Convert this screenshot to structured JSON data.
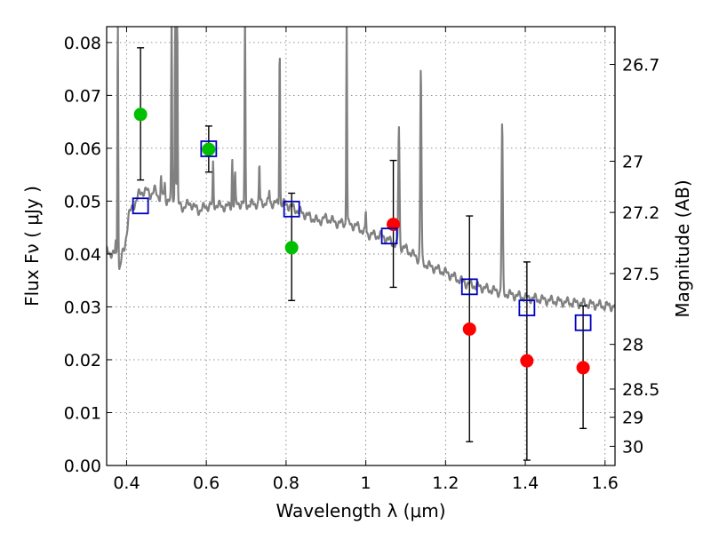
{
  "chart_data": {
    "type": "scatter",
    "title": "",
    "xlabel": "Wavelength  λ (μm)",
    "ylabel": "Flux  Fν  ( μJy )",
    "y2label": "Magnitude (AB)",
    "xlim": [
      0.35,
      1.625
    ],
    "ylim": [
      0.0,
      0.083
    ],
    "grid": true,
    "x_ticks": [
      0.4,
      0.6,
      0.8,
      1.0,
      1.2,
      1.4,
      1.6
    ],
    "x_tick_labels": [
      "0.4",
      "0.6",
      "0.8",
      "1",
      "1.2",
      "1.4",
      "1.6"
    ],
    "y_ticks": [
      0.0,
      0.01,
      0.02,
      0.03,
      0.04,
      0.05,
      0.06,
      0.07,
      0.08
    ],
    "y_tick_labels": [
      "0.00",
      "0.01",
      "0.02",
      "0.03",
      "0.04",
      "0.05",
      "0.06",
      "0.07",
      "0.08"
    ],
    "mag_ticks": [
      {
        "value": 26.7,
        "label": "26.7"
      },
      {
        "value": 27.0,
        "label": "27"
      },
      {
        "value": 27.2,
        "label": "27.2"
      },
      {
        "value": 27.5,
        "label": "27.5"
      },
      {
        "value": 28.0,
        "label": "28"
      },
      {
        "value": 28.5,
        "label": "28.5"
      },
      {
        "value": 29.0,
        "label": "29"
      },
      {
        "value": 30.0,
        "label": "30"
      }
    ],
    "series": [
      {
        "marker": "circle",
        "color": "#00bf00",
        "points": [
          {
            "x": 0.435,
            "y": 0.0664,
            "yerr_low": 0.054,
            "yerr_high": 0.079
          },
          {
            "x": 0.606,
            "y": 0.0598,
            "yerr_low": 0.0555,
            "yerr_high": 0.0642
          },
          {
            "x": 0.814,
            "y": 0.0412,
            "yerr_low": 0.0312,
            "yerr_high": 0.0515
          }
        ]
      },
      {
        "marker": "circle",
        "color": "#ff0000",
        "points": [
          {
            "x": 1.069,
            "y": 0.0456,
            "yerr_low": 0.0337,
            "yerr_high": 0.0577
          },
          {
            "x": 1.26,
            "y": 0.0258,
            "yerr_low": 0.0045,
            "yerr_high": 0.0472
          },
          {
            "x": 1.404,
            "y": 0.0198,
            "yerr_low": 0.001,
            "yerr_high": 0.0385
          },
          {
            "x": 1.545,
            "y": 0.0185,
            "yerr_low": 0.007,
            "yerr_high": 0.0302
          }
        ]
      },
      {
        "marker": "square",
        "color": "#0000bf",
        "points": [
          {
            "x": 0.435,
            "y": 0.0491
          },
          {
            "x": 0.606,
            "y": 0.0599
          },
          {
            "x": 0.814,
            "y": 0.0485
          },
          {
            "x": 1.059,
            "y": 0.0434
          },
          {
            "x": 1.26,
            "y": 0.0338
          },
          {
            "x": 1.404,
            "y": 0.0298
          },
          {
            "x": 1.545,
            "y": 0.027
          }
        ]
      },
      {
        "type": "line",
        "color": "#808080",
        "continuum": [
          [
            0.35,
            0.0405
          ],
          [
            0.36,
            0.0402
          ],
          [
            0.37,
            0.0399
          ],
          [
            0.375,
            0.0393
          ],
          [
            0.382,
            0.0372
          ],
          [
            0.388,
            0.0395
          ],
          [
            0.395,
            0.041
          ],
          [
            0.4,
            0.044
          ],
          [
            0.405,
            0.0475
          ],
          [
            0.41,
            0.048
          ],
          [
            0.42,
            0.0495
          ],
          [
            0.43,
            0.0512
          ],
          [
            0.44,
            0.0518
          ],
          [
            0.45,
            0.052
          ],
          [
            0.46,
            0.0512
          ],
          [
            0.47,
            0.0521
          ],
          [
            0.48,
            0.0508
          ],
          [
            0.49,
            0.0512
          ],
          [
            0.5,
            0.0505
          ],
          [
            0.52,
            0.05
          ],
          [
            0.54,
            0.0488
          ],
          [
            0.56,
            0.0496
          ],
          [
            0.58,
            0.0482
          ],
          [
            0.6,
            0.049
          ],
          [
            0.62,
            0.0493
          ],
          [
            0.65,
            0.0489
          ],
          [
            0.68,
            0.0496
          ],
          [
            0.7,
            0.0493
          ],
          [
            0.75,
            0.0497
          ],
          [
            0.8,
            0.0494
          ],
          [
            0.85,
            0.0474
          ],
          [
            0.88,
            0.0462
          ],
          [
            0.9,
            0.0468
          ],
          [
            0.93,
            0.0458
          ],
          [
            0.95,
            0.0458
          ],
          [
            0.98,
            0.0452
          ],
          [
            1.0,
            0.0438
          ],
          [
            1.04,
            0.0434
          ],
          [
            1.07,
            0.042
          ],
          [
            1.1,
            0.041
          ],
          [
            1.15,
            0.038
          ],
          [
            1.2,
            0.0365
          ],
          [
            1.25,
            0.0345
          ],
          [
            1.3,
            0.0335
          ],
          [
            1.35,
            0.0325
          ],
          [
            1.4,
            0.0318
          ],
          [
            1.45,
            0.0313
          ],
          [
            1.5,
            0.0309
          ],
          [
            1.55,
            0.0306
          ],
          [
            1.6,
            0.0302
          ],
          [
            1.625,
            0.0301
          ]
        ],
        "emission_lines": [
          {
            "x": 0.378,
            "peak": 0.085,
            "width": 0.002
          },
          {
            "x": 0.3727,
            "peak": 0.042,
            "width": 0.002
          },
          {
            "x": 0.4863,
            "peak": 0.0545,
            "width": 0.002
          },
          {
            "x": 0.496,
            "peak": 0.053,
            "width": 0.002
          },
          {
            "x": 0.5008,
            "peak": 0.05,
            "width": 0.002
          },
          {
            "x": 0.513,
            "peak": 0.085,
            "width": 0.002
          },
          {
            "x": 0.522,
            "peak": 0.085,
            "width": 0.002
          },
          {
            "x": 0.527,
            "peak": 0.085,
            "width": 0.002
          },
          {
            "x": 0.617,
            "peak": 0.057,
            "width": 0.002
          },
          {
            "x": 0.665,
            "peak": 0.058,
            "width": 0.002
          },
          {
            "x": 0.672,
            "peak": 0.055,
            "width": 0.002
          },
          {
            "x": 0.697,
            "peak": 0.085,
            "width": 0.002
          },
          {
            "x": 0.733,
            "peak": 0.057,
            "width": 0.002
          },
          {
            "x": 0.758,
            "peak": 0.052,
            "width": 0.002
          },
          {
            "x": 0.784,
            "peak": 0.08,
            "width": 0.002
          },
          {
            "x": 0.952,
            "peak": 0.085,
            "width": 0.002
          },
          {
            "x": 1.0,
            "peak": 0.048,
            "width": 0.002
          },
          {
            "x": 1.083,
            "peak": 0.064,
            "width": 0.003
          },
          {
            "x": 1.138,
            "peak": 0.075,
            "width": 0.003
          },
          {
            "x": 1.342,
            "peak": 0.0645,
            "width": 0.003
          }
        ]
      }
    ]
  }
}
